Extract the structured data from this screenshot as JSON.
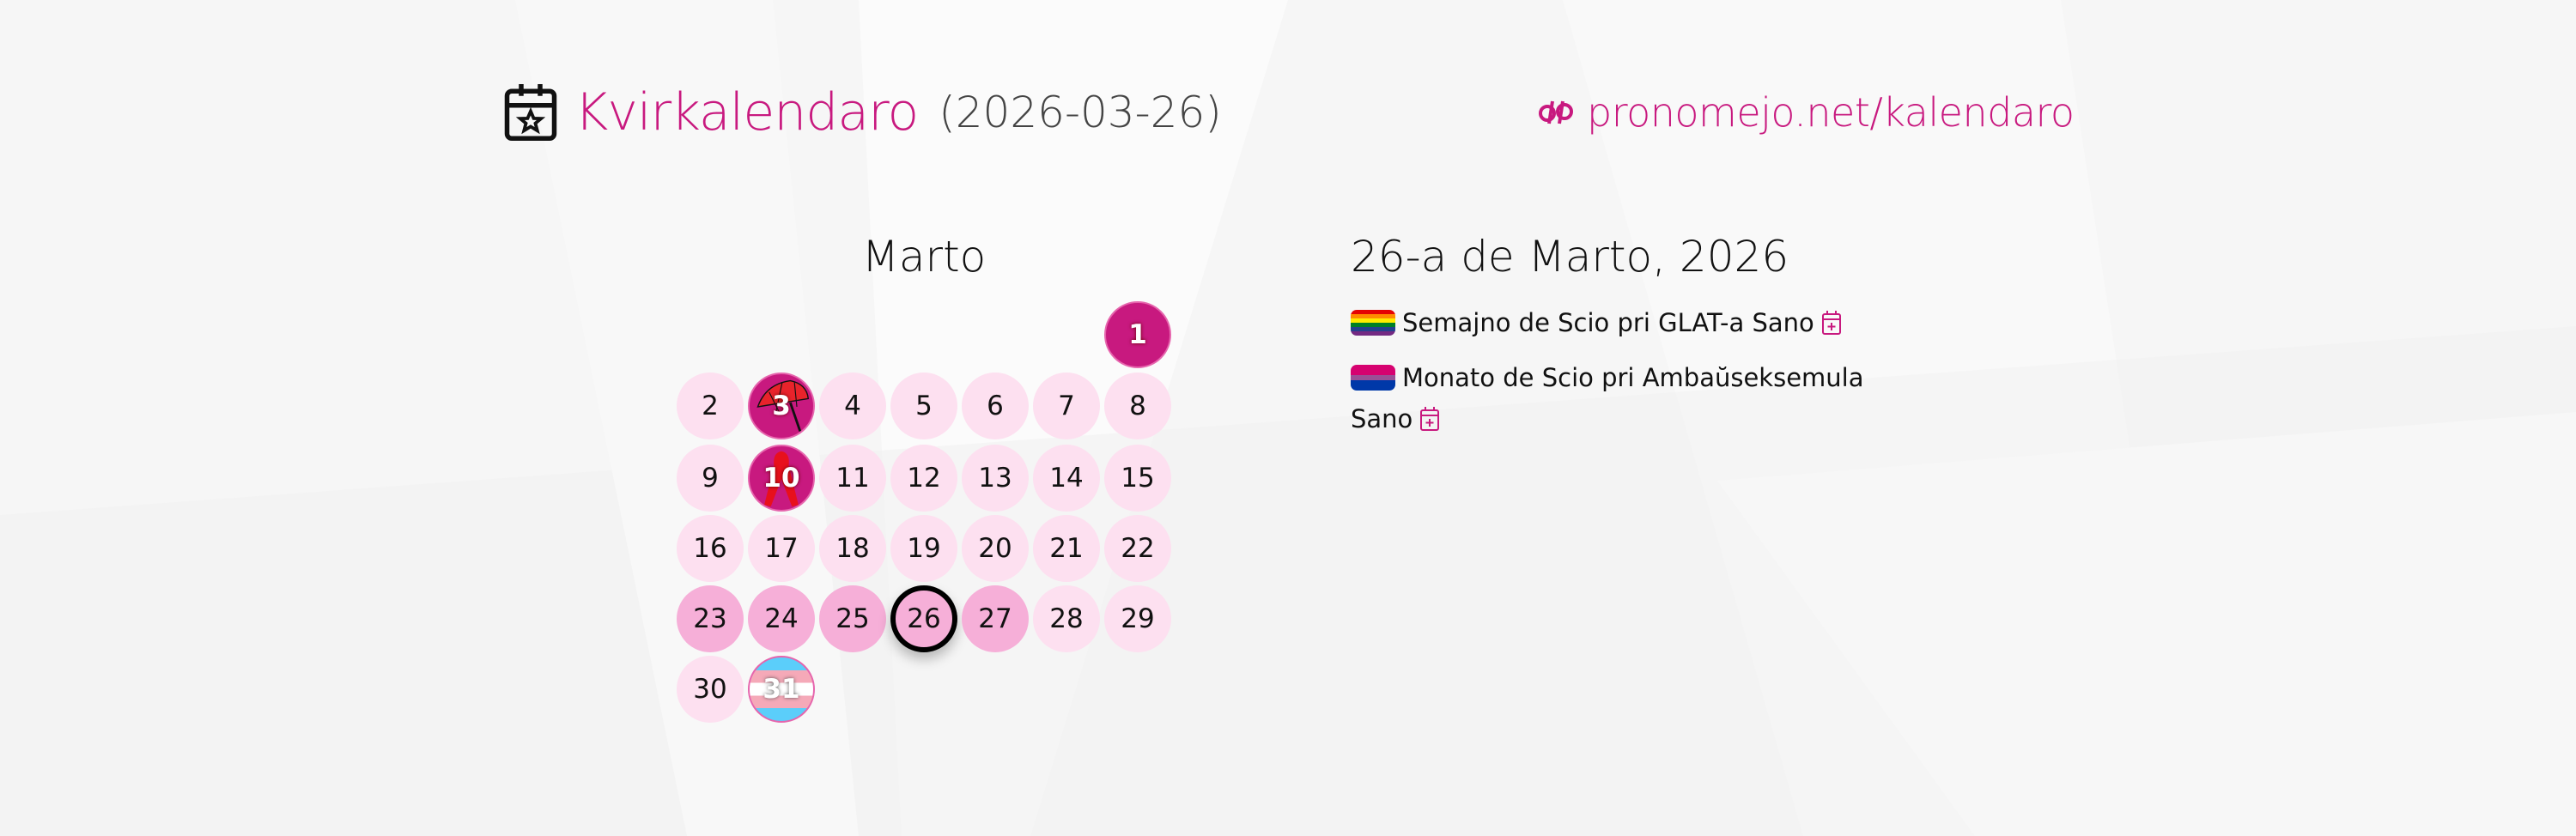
{
  "header": {
    "title": "Kvirkalendaro",
    "date": "(2026-03-26)",
    "icon": "calendar-star-icon",
    "link_text": "pronomejo.net/kalendaro",
    "link_icon": "pronomejo-logo-icon"
  },
  "colors": {
    "accent": "#c8197f",
    "day_light": "#fde0f0",
    "day_mid": "#f6afd8",
    "day_dark": "#c8197f"
  },
  "calendar": {
    "month": "Marto",
    "days": [
      {
        "d": "1",
        "style": "dark"
      },
      {
        "d": "2"
      },
      {
        "d": "3",
        "style": "dark",
        "icon": "umbrella-icon"
      },
      {
        "d": "4"
      },
      {
        "d": "5"
      },
      {
        "d": "6"
      },
      {
        "d": "7"
      },
      {
        "d": "8"
      },
      {
        "d": "9"
      },
      {
        "d": "10",
        "style": "dark",
        "icon": "red-ribbon-icon"
      },
      {
        "d": "11"
      },
      {
        "d": "12"
      },
      {
        "d": "13"
      },
      {
        "d": "14"
      },
      {
        "d": "15"
      },
      {
        "d": "16"
      },
      {
        "d": "17"
      },
      {
        "d": "18"
      },
      {
        "d": "19"
      },
      {
        "d": "20"
      },
      {
        "d": "21"
      },
      {
        "d": "22"
      },
      {
        "d": "23",
        "style": "mid"
      },
      {
        "d": "24",
        "style": "mid"
      },
      {
        "d": "25",
        "style": "mid"
      },
      {
        "d": "26",
        "style": "mid",
        "today": true
      },
      {
        "d": "27",
        "style": "mid"
      },
      {
        "d": "28"
      },
      {
        "d": "29"
      },
      {
        "d": "30"
      },
      {
        "d": "31",
        "style": "trans",
        "icon": "trans-flag-icon"
      }
    ]
  },
  "selected_day": {
    "title": "26-a de Marto, 2026",
    "events": [
      {
        "label": "Semajno de Scio pri GLAT-a Sano",
        "flag": "rainbow-flag-icon"
      },
      {
        "label": "Monato de Scio pri Ambaŭseksemula Sano",
        "flag": "bisexual-flag-icon"
      }
    ]
  }
}
